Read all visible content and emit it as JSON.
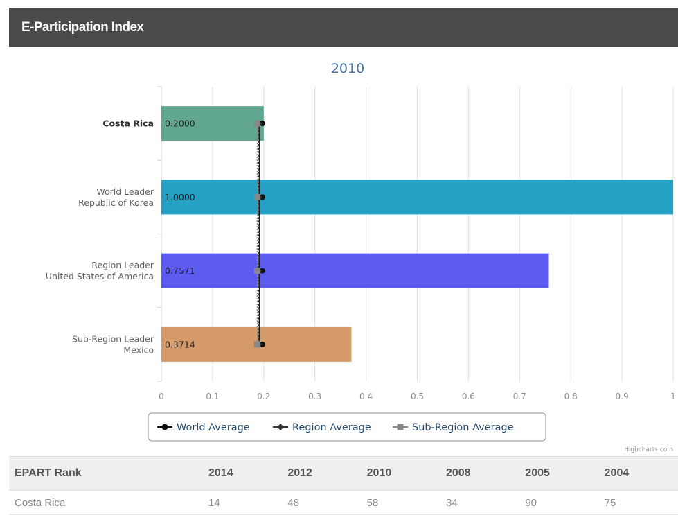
{
  "panel": {
    "title": "E-Participation Index"
  },
  "chart_data": {
    "type": "bar",
    "orientation": "horizontal",
    "title": "2010",
    "categories": [
      [
        "Costa Rica"
      ],
      [
        "World Leader",
        "Republic of Korea"
      ],
      [
        "Region Leader",
        "United States of America"
      ],
      [
        "Sub-Region Leader",
        "Mexico"
      ]
    ],
    "values": [
      0.2,
      1.0,
      0.7571,
      0.3714
    ],
    "value_labels": [
      "0.2000",
      "1.0000",
      "0.7571",
      "0.3714"
    ],
    "bar_colors": [
      "#60a690",
      "#23a0c4",
      "#5b5bf2",
      "#d49a6a"
    ],
    "xlim": [
      0,
      1
    ],
    "x_ticks": [
      "0",
      "0.1",
      "0.2",
      "0.3",
      "0.4",
      "0.5",
      "0.6",
      "0.7",
      "0.8",
      "0.9",
      "1"
    ],
    "grid": true,
    "series": [
      {
        "name": "World Average",
        "values": [
          0.19,
          0.19,
          0.19,
          0.19
        ],
        "color": "#111111",
        "marker": "circle"
      },
      {
        "name": "Region Average",
        "values": [
          0.19,
          0.19,
          0.19,
          0.19
        ],
        "color": "#333333",
        "marker": "diamond"
      },
      {
        "name": "Sub-Region Average",
        "values": [
          0.19,
          0.19,
          0.19,
          0.19
        ],
        "color": "#888888",
        "marker": "square"
      }
    ],
    "legend_position": "bottom-center",
    "credit": "Highcharts.com"
  },
  "rank_table": {
    "headers": [
      "EPART Rank",
      "2014",
      "2012",
      "2010",
      "2008",
      "2005",
      "2004"
    ],
    "rows": [
      [
        "Costa Rica",
        "14",
        "48",
        "58",
        "34",
        "90",
        "75"
      ]
    ]
  }
}
